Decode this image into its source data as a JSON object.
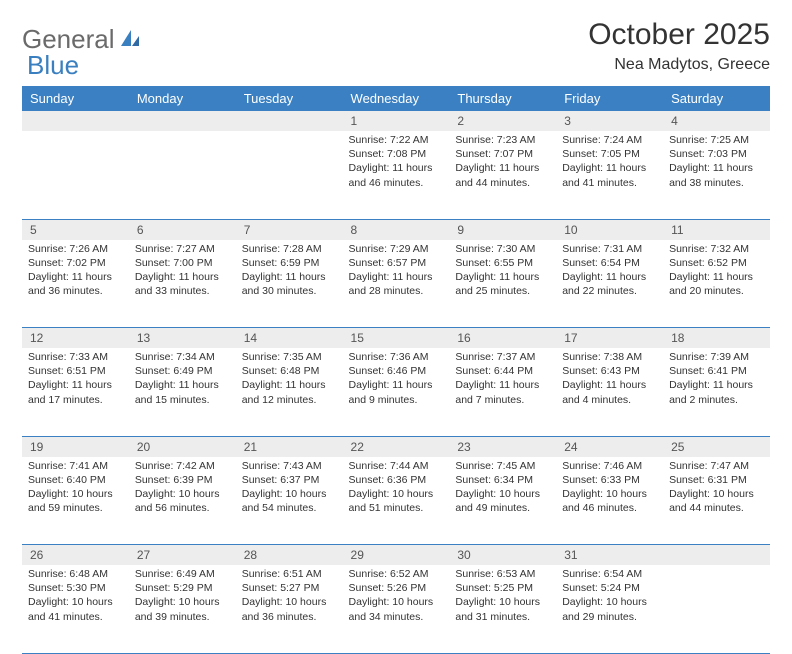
{
  "brand": {
    "word1": "General",
    "word2": "Blue"
  },
  "title": "October 2025",
  "location": "Nea Madytos, Greece",
  "colors": {
    "header_bg": "#3a80c3",
    "header_text": "#ffffff",
    "daynum_bg": "#ededed",
    "rule": "#3a80c3",
    "logo_gray": "#6a6a6a",
    "logo_blue": "#3a7fbf"
  },
  "weekdays": [
    "Sunday",
    "Monday",
    "Tuesday",
    "Wednesday",
    "Thursday",
    "Friday",
    "Saturday"
  ],
  "weeks": [
    [
      null,
      null,
      null,
      {
        "n": "1",
        "sr": "7:22 AM",
        "ss": "7:08 PM",
        "dl": "11 hours and 46 minutes."
      },
      {
        "n": "2",
        "sr": "7:23 AM",
        "ss": "7:07 PM",
        "dl": "11 hours and 44 minutes."
      },
      {
        "n": "3",
        "sr": "7:24 AM",
        "ss": "7:05 PM",
        "dl": "11 hours and 41 minutes."
      },
      {
        "n": "4",
        "sr": "7:25 AM",
        "ss": "7:03 PM",
        "dl": "11 hours and 38 minutes."
      }
    ],
    [
      {
        "n": "5",
        "sr": "7:26 AM",
        "ss": "7:02 PM",
        "dl": "11 hours and 36 minutes."
      },
      {
        "n": "6",
        "sr": "7:27 AM",
        "ss": "7:00 PM",
        "dl": "11 hours and 33 minutes."
      },
      {
        "n": "7",
        "sr": "7:28 AM",
        "ss": "6:59 PM",
        "dl": "11 hours and 30 minutes."
      },
      {
        "n": "8",
        "sr": "7:29 AM",
        "ss": "6:57 PM",
        "dl": "11 hours and 28 minutes."
      },
      {
        "n": "9",
        "sr": "7:30 AM",
        "ss": "6:55 PM",
        "dl": "11 hours and 25 minutes."
      },
      {
        "n": "10",
        "sr": "7:31 AM",
        "ss": "6:54 PM",
        "dl": "11 hours and 22 minutes."
      },
      {
        "n": "11",
        "sr": "7:32 AM",
        "ss": "6:52 PM",
        "dl": "11 hours and 20 minutes."
      }
    ],
    [
      {
        "n": "12",
        "sr": "7:33 AM",
        "ss": "6:51 PM",
        "dl": "11 hours and 17 minutes."
      },
      {
        "n": "13",
        "sr": "7:34 AM",
        "ss": "6:49 PM",
        "dl": "11 hours and 15 minutes."
      },
      {
        "n": "14",
        "sr": "7:35 AM",
        "ss": "6:48 PM",
        "dl": "11 hours and 12 minutes."
      },
      {
        "n": "15",
        "sr": "7:36 AM",
        "ss": "6:46 PM",
        "dl": "11 hours and 9 minutes."
      },
      {
        "n": "16",
        "sr": "7:37 AM",
        "ss": "6:44 PM",
        "dl": "11 hours and 7 minutes."
      },
      {
        "n": "17",
        "sr": "7:38 AM",
        "ss": "6:43 PM",
        "dl": "11 hours and 4 minutes."
      },
      {
        "n": "18",
        "sr": "7:39 AM",
        "ss": "6:41 PM",
        "dl": "11 hours and 2 minutes."
      }
    ],
    [
      {
        "n": "19",
        "sr": "7:41 AM",
        "ss": "6:40 PM",
        "dl": "10 hours and 59 minutes."
      },
      {
        "n": "20",
        "sr": "7:42 AM",
        "ss": "6:39 PM",
        "dl": "10 hours and 56 minutes."
      },
      {
        "n": "21",
        "sr": "7:43 AM",
        "ss": "6:37 PM",
        "dl": "10 hours and 54 minutes."
      },
      {
        "n": "22",
        "sr": "7:44 AM",
        "ss": "6:36 PM",
        "dl": "10 hours and 51 minutes."
      },
      {
        "n": "23",
        "sr": "7:45 AM",
        "ss": "6:34 PM",
        "dl": "10 hours and 49 minutes."
      },
      {
        "n": "24",
        "sr": "7:46 AM",
        "ss": "6:33 PM",
        "dl": "10 hours and 46 minutes."
      },
      {
        "n": "25",
        "sr": "7:47 AM",
        "ss": "6:31 PM",
        "dl": "10 hours and 44 minutes."
      }
    ],
    [
      {
        "n": "26",
        "sr": "6:48 AM",
        "ss": "5:30 PM",
        "dl": "10 hours and 41 minutes."
      },
      {
        "n": "27",
        "sr": "6:49 AM",
        "ss": "5:29 PM",
        "dl": "10 hours and 39 minutes."
      },
      {
        "n": "28",
        "sr": "6:51 AM",
        "ss": "5:27 PM",
        "dl": "10 hours and 36 minutes."
      },
      {
        "n": "29",
        "sr": "6:52 AM",
        "ss": "5:26 PM",
        "dl": "10 hours and 34 minutes."
      },
      {
        "n": "30",
        "sr": "6:53 AM",
        "ss": "5:25 PM",
        "dl": "10 hours and 31 minutes."
      },
      {
        "n": "31",
        "sr": "6:54 AM",
        "ss": "5:24 PM",
        "dl": "10 hours and 29 minutes."
      },
      null
    ]
  ],
  "labels": {
    "sunrise": "Sunrise:",
    "sunset": "Sunset:",
    "daylight": "Daylight:"
  }
}
